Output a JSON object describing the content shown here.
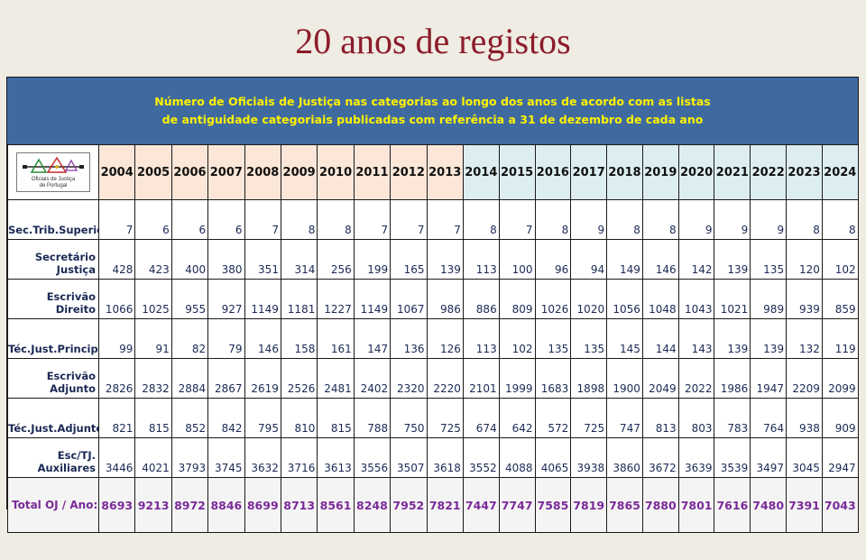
{
  "page_title": "20 anos de registos",
  "caption": {
    "line1": "Número de Oficiais de Justiça nas categorias ao longo dos anos de acordo com as listas",
    "line2": "de antiguidade categoriais publicadas com referência a 31 de dezembro de cada ano"
  },
  "logo": {
    "line1": "Oficiais de Justiça",
    "line2": "de Portugal",
    "icon": "justice-logo-icon"
  },
  "colors": {
    "title": "#8c1c2a",
    "caption_bg": "#3f6aa0",
    "caption_text": "#fff200",
    "years_early_bg": "#fbe6d7",
    "years_late_bg": "#ddeef2",
    "total_text": "#7a2a98"
  },
  "chart_data": {
    "type": "table",
    "title": "Número de Oficiais de Justiça nas categorias ao longo dos anos de acordo com as listas de antiguidade categoriais publicadas com referência a 31 de dezembro de cada ano",
    "years": [
      "2004",
      "2005",
      "2006",
      "2007",
      "2008",
      "2009",
      "2010",
      "2011",
      "2012",
      "2013",
      "2014",
      "2015",
      "2016",
      "2017",
      "2018",
      "2019",
      "2020",
      "2021",
      "2022",
      "2023",
      "2024"
    ],
    "rows": [
      {
        "label": "Sec.Trib.Superior",
        "values": [
          7,
          6,
          6,
          6,
          7,
          8,
          8,
          7,
          7,
          7,
          8,
          7,
          8,
          9,
          8,
          8,
          9,
          9,
          9,
          8,
          8
        ]
      },
      {
        "label": "Secretário Justiça",
        "values": [
          428,
          423,
          400,
          380,
          351,
          314,
          256,
          199,
          165,
          139,
          113,
          100,
          96,
          94,
          149,
          146,
          142,
          139,
          135,
          120,
          102
        ]
      },
      {
        "label": "Escrivão Direito",
        "values": [
          1066,
          1025,
          955,
          927,
          1149,
          1181,
          1227,
          1149,
          1067,
          986,
          886,
          809,
          1026,
          1020,
          1056,
          1048,
          1043,
          1021,
          989,
          939,
          859
        ]
      },
      {
        "label": "Téc.Just.Principal",
        "values": [
          99,
          91,
          82,
          79,
          146,
          158,
          161,
          147,
          136,
          126,
          113,
          102,
          135,
          135,
          145,
          144,
          143,
          139,
          139,
          132,
          119
        ]
      },
      {
        "label": "Escrivão Adjunto",
        "values": [
          2826,
          2832,
          2884,
          2867,
          2619,
          2526,
          2481,
          2402,
          2320,
          2220,
          2101,
          1999,
          1683,
          1898,
          1900,
          2049,
          2022,
          1986,
          1947,
          2209,
          2099
        ]
      },
      {
        "label": "Téc.Just.Adjunto",
        "values": [
          821,
          815,
          852,
          842,
          795,
          810,
          815,
          788,
          750,
          725,
          674,
          642,
          572,
          725,
          747,
          813,
          803,
          783,
          764,
          938,
          909
        ]
      },
      {
        "label": "Esc/TJ. Auxiliares",
        "values": [
          3446,
          4021,
          3793,
          3745,
          3632,
          3716,
          3613,
          3556,
          3507,
          3618,
          3552,
          4088,
          4065,
          3938,
          3860,
          3672,
          3639,
          3539,
          3497,
          3045,
          2947
        ]
      }
    ],
    "total": {
      "label": "Total OJ / Ano:",
      "values": [
        8693,
        9213,
        8972,
        8846,
        8699,
        8713,
        8561,
        8248,
        7952,
        7821,
        7447,
        7747,
        7585,
        7819,
        7865,
        7880,
        7801,
        7616,
        7480,
        7391,
        7043
      ]
    }
  }
}
